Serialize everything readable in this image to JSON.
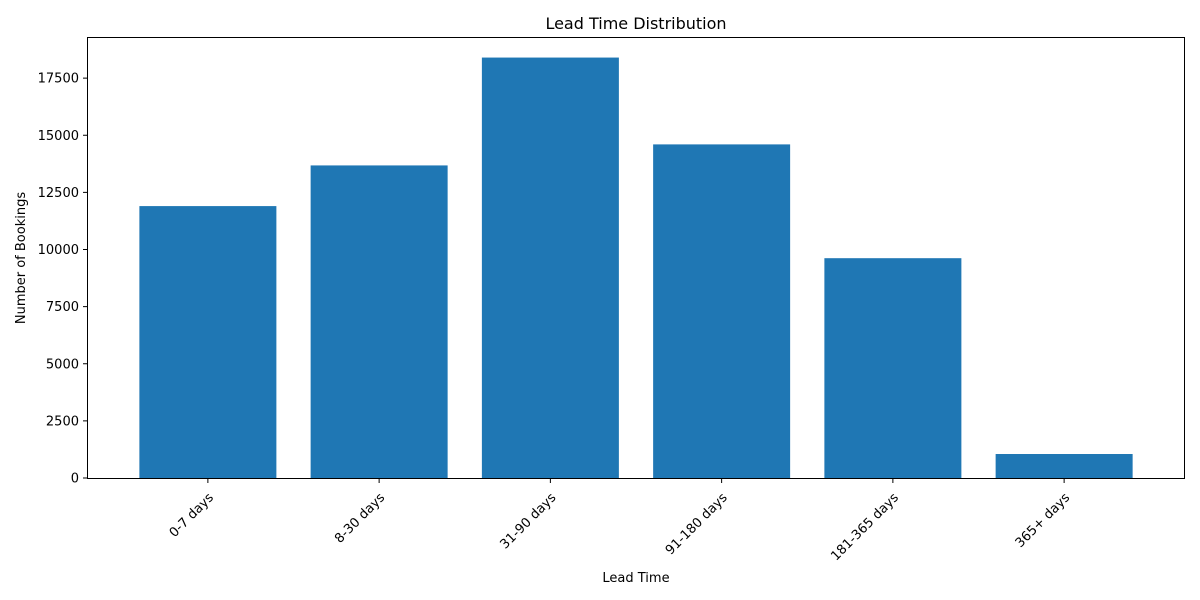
{
  "chart_data": {
    "type": "bar",
    "title": "Lead Time Distribution",
    "xlabel": "Lead Time",
    "ylabel": "Number of Bookings",
    "categories": [
      "0-7 days",
      "8-30 days",
      "31-90 days",
      "91-180 days",
      "181-365 days",
      "365+ days"
    ],
    "values": [
      11900,
      13680,
      18400,
      14600,
      9620,
      1050
    ],
    "ylim": [
      0,
      19300
    ],
    "yticks": [
      0,
      2500,
      5000,
      7500,
      10000,
      12500,
      15000,
      17500
    ],
    "ytick_labels": [
      "0",
      "2500",
      "5000",
      "7500",
      "10000",
      "12500",
      "15000",
      "17500"
    ],
    "bar_color": "#1f77b4",
    "grid": false,
    "legend": "none"
  }
}
